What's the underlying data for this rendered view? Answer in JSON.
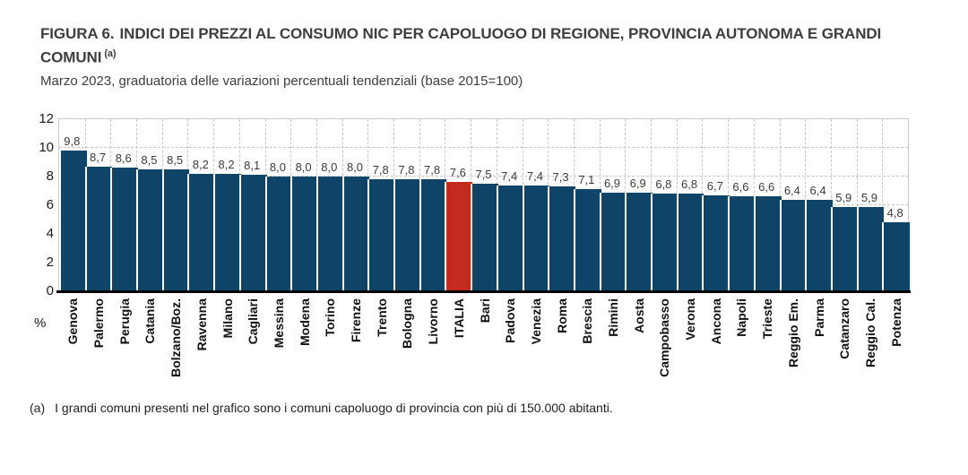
{
  "header": {
    "figure_label": "FIGURA 6.",
    "title": "INDICI DEI PREZZI AL CONSUMO NIC PER CAPOLUOGO DI REGIONE, PROVINCIA AUTONOMA E GRANDI COMUNI",
    "note_marker": "(a)",
    "subtitle": "Marzo 2023, graduatoria delle variazioni percentuali tendenziali (base 2015=100)"
  },
  "chart_data": {
    "type": "bar",
    "categories": [
      "Genova",
      "Palermo",
      "Perugia",
      "Catania",
      "Bolzano/Boz.",
      "Ravenna",
      "Milano",
      "Cagliari",
      "Messina",
      "Modena",
      "Torino",
      "Firenze",
      "Trento",
      "Bologna",
      "Livorno",
      "ITALIA",
      "Bari",
      "Padova",
      "Venezia",
      "Roma",
      "Brescia",
      "Rimini",
      "Aosta",
      "Campobasso",
      "Verona",
      "Ancona",
      "Napoli",
      "Trieste",
      "Reggio Em.",
      "Parma",
      "Catanzaro",
      "Reggio Cal.",
      "Potenza"
    ],
    "values": [
      9.8,
      8.7,
      8.6,
      8.5,
      8.5,
      8.2,
      8.2,
      8.1,
      8.0,
      8.0,
      8.0,
      8.0,
      7.8,
      7.8,
      7.8,
      7.6,
      7.5,
      7.4,
      7.4,
      7.3,
      7.1,
      6.9,
      6.9,
      6.8,
      6.8,
      6.7,
      6.6,
      6.6,
      6.4,
      6.4,
      5.9,
      5.9,
      4.8
    ],
    "value_labels": [
      "9,8",
      "8,7",
      "8,6",
      "8,5",
      "8,5",
      "8,2",
      "8,2",
      "8,1",
      "8,0",
      "8,0",
      "8,0",
      "8,0",
      "7,8",
      "7,8",
      "7,8",
      "7,6",
      "7,5",
      "7,4",
      "7,4",
      "7,3",
      "7,1",
      "6,9",
      "6,9",
      "6,8",
      "6,8",
      "6,7",
      "6,6",
      "6,6",
      "6,4",
      "6,4",
      "5,9",
      "5,9",
      "4,8"
    ],
    "highlight_category": "ITALIA",
    "highlight_index": 15,
    "ylabel": "%",
    "y_ticks": [
      0,
      2,
      4,
      6,
      8,
      10,
      12
    ],
    "ylim": [
      0,
      12
    ],
    "grid": true,
    "legend_position": "none",
    "colors": {
      "bar": "#0e4467",
      "highlight": "#c32b1d"
    }
  },
  "footnote": {
    "marker": "(a)",
    "text": "I grandi comuni presenti nel grafico sono i comuni capoluogo di provincia con più di 150.000 abitanti."
  },
  "colors": {
    "figure_label_red": "#cf281a",
    "title_text": "#3e3e3e",
    "gridline": "#c6c6c6",
    "axis": "#000000"
  }
}
